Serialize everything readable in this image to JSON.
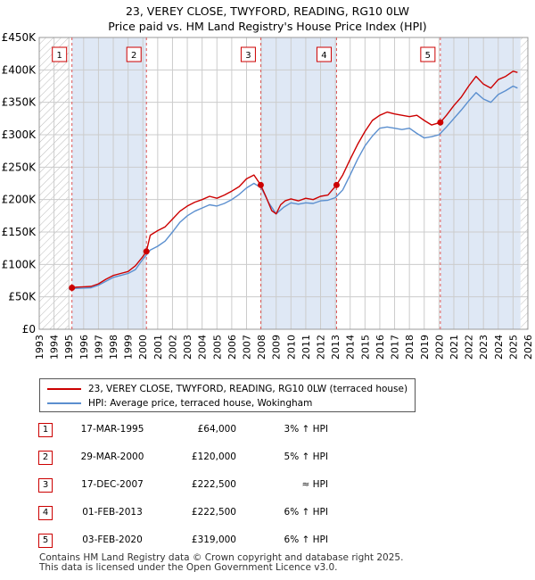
{
  "title": {
    "line1": "23, VEREY CLOSE, TWYFORD, READING, RG10 0LW",
    "line2": "Price paid vs. HM Land Registry's House Price Index (HPI)"
  },
  "colors": {
    "property": "#cc0000",
    "hpi": "#5b8fcf",
    "shade": "#dfe8f5",
    "grid": "#cccccc"
  },
  "legend": {
    "property": "23, VEREY CLOSE, TWYFORD, READING, RG10 0LW (terraced house)",
    "hpi": "HPI: Average price, terraced house, Wokingham"
  },
  "sales": [
    {
      "num": "1",
      "date": "17-MAR-1995",
      "price": "£64,000",
      "hpi": "3% ↑ HPI"
    },
    {
      "num": "2",
      "date": "29-MAR-2000",
      "price": "£120,000",
      "hpi": "5% ↑ HPI"
    },
    {
      "num": "3",
      "date": "17-DEC-2007",
      "price": "£222,500",
      "hpi": "≈ HPI"
    },
    {
      "num": "4",
      "date": "01-FEB-2013",
      "price": "£222,500",
      "hpi": "6% ↑ HPI"
    },
    {
      "num": "5",
      "date": "03-FEB-2020",
      "price": "£319,000",
      "hpi": "6% ↑ HPI"
    }
  ],
  "footer": {
    "line1": "Contains HM Land Registry data © Crown copyright and database right 2025.",
    "line2": "This data is licensed under the Open Government Licence v3.0."
  },
  "chart_data": {
    "type": "line",
    "title": "Price paid vs. HM Land Registry's House Price Index (HPI)",
    "xlim": [
      1993,
      2026
    ],
    "ylim": [
      0,
      450000
    ],
    "x_ticks": [
      1993,
      1994,
      1995,
      1996,
      1997,
      1998,
      1999,
      2000,
      2001,
      2002,
      2003,
      2004,
      2005,
      2006,
      2007,
      2008,
      2009,
      2010,
      2011,
      2012,
      2013,
      2014,
      2015,
      2016,
      2017,
      2018,
      2019,
      2020,
      2021,
      2022,
      2023,
      2024,
      2025,
      2026
    ],
    "y_ticks": [
      0,
      50000,
      100000,
      150000,
      200000,
      250000,
      300000,
      350000,
      400000,
      450000
    ],
    "y_tick_labels": [
      "£0",
      "£50K",
      "£100K",
      "£150K",
      "£200K",
      "£250K",
      "£300K",
      "£350K",
      "£400K",
      "£450K"
    ],
    "hatched_before": 1995.0,
    "hatched_after": 2025.5,
    "sale_markers": [
      {
        "label": "1",
        "x": 1995.21,
        "y": 64000
      },
      {
        "label": "2",
        "x": 2000.24,
        "y": 120000
      },
      {
        "label": "3",
        "x": 2007.96,
        "y": 222500
      },
      {
        "label": "4",
        "x": 2013.08,
        "y": 222500
      },
      {
        "label": "5",
        "x": 2020.09,
        "y": 319000
      }
    ],
    "series": [
      {
        "name": "23, VEREY CLOSE, TWYFORD, READING, RG10 0LW (terraced house)",
        "color": "#cc0000",
        "x": [
          1995.21,
          1995.5,
          1996,
          1996.5,
          1997,
          1997.5,
          1998,
          1998.5,
          1999,
          1999.5,
          2000,
          2000.24,
          2000.5,
          2001,
          2001.5,
          2002,
          2002.5,
          2003,
          2003.5,
          2004,
          2004.5,
          2005,
          2005.5,
          2006,
          2006.5,
          2007,
          2007.5,
          2007.96,
          2008.3,
          2008.7,
          2009.0,
          2009.3,
          2009.6,
          2010,
          2010.5,
          2011,
          2011.5,
          2012,
          2012.5,
          2013.08,
          2013.5,
          2014,
          2014.5,
          2015,
          2015.5,
          2016,
          2016.5,
          2017,
          2017.5,
          2018,
          2018.5,
          2019,
          2019.5,
          2020.09,
          2020.5,
          2021,
          2021.5,
          2022,
          2022.5,
          2023,
          2023.5,
          2024,
          2024.5,
          2025,
          2025.3
        ],
        "y": [
          64000,
          65000,
          65500,
          66000,
          70000,
          77000,
          83000,
          86000,
          89000,
          98000,
          112000,
          120000,
          145000,
          152000,
          158000,
          170000,
          182000,
          190000,
          196000,
          200000,
          205000,
          202000,
          207000,
          213000,
          220000,
          232000,
          238000,
          222500,
          205000,
          183000,
          178000,
          192000,
          198000,
          201000,
          198000,
          202000,
          200000,
          205000,
          207000,
          222500,
          238000,
          262000,
          285000,
          305000,
          322000,
          330000,
          335000,
          332000,
          330000,
          328000,
          330000,
          322000,
          315000,
          319000,
          330000,
          345000,
          358000,
          375000,
          390000,
          378000,
          372000,
          385000,
          390000,
          398000,
          396000
        ]
      },
      {
        "name": "HPI: Average price, terraced house, Wokingham",
        "color": "#5b8fcf",
        "x": [
          1995.0,
          1995.5,
          1996,
          1996.5,
          1997,
          1997.5,
          1998,
          1998.5,
          1999,
          1999.5,
          2000,
          2000.5,
          2001,
          2001.5,
          2002,
          2002.5,
          2003,
          2003.5,
          2004,
          2004.5,
          2005,
          2005.5,
          2006,
          2006.5,
          2007,
          2007.5,
          2008,
          2008.5,
          2009,
          2009.5,
          2010,
          2010.5,
          2011,
          2011.5,
          2012,
          2012.5,
          2013,
          2013.5,
          2014,
          2014.5,
          2015,
          2015.5,
          2016,
          2016.5,
          2017,
          2017.5,
          2018,
          2018.5,
          2019,
          2019.5,
          2020,
          2020.5,
          2021,
          2021.5,
          2022,
          2022.5,
          2023,
          2023.5,
          2024,
          2024.5,
          2025,
          2025.3
        ],
        "y": [
          62000,
          63000,
          63500,
          64000,
          68000,
          74000,
          80000,
          83000,
          86000,
          92000,
          108000,
          122000,
          128000,
          136000,
          150000,
          165000,
          175000,
          182000,
          187000,
          192000,
          190000,
          194000,
          200000,
          208000,
          218000,
          225000,
          218000,
          195000,
          178000,
          188000,
          195000,
          193000,
          195000,
          194000,
          198000,
          199000,
          203000,
          215000,
          238000,
          262000,
          283000,
          298000,
          310000,
          312000,
          310000,
          308000,
          310000,
          302000,
          295000,
          297000,
          300000,
          312000,
          325000,
          338000,
          352000,
          365000,
          355000,
          350000,
          362000,
          368000,
          375000,
          372000
        ]
      }
    ]
  }
}
